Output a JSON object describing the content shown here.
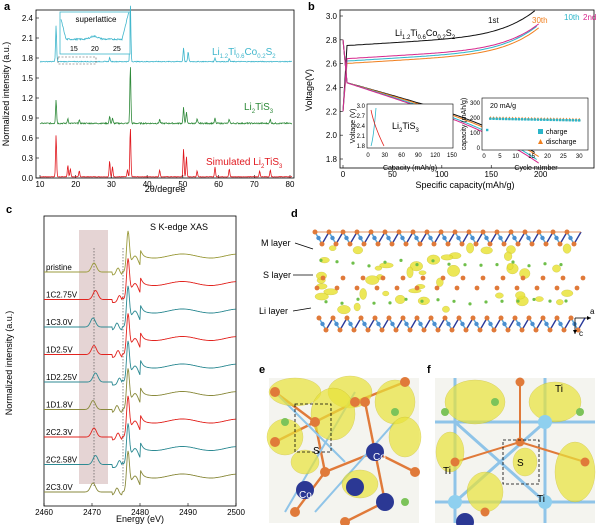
{
  "panels": {
    "a": {
      "label": "a",
      "xlabel": "2θ/degree",
      "ylabel": "Normalized intensity (a.u.)",
      "xticks": [
        "10",
        "20",
        "30",
        "40",
        "50",
        "60",
        "70",
        "80"
      ],
      "yticks": [
        "0.0",
        "0.3",
        "0.6",
        "0.9",
        "1.2",
        "1.5",
        "1.8",
        "2.1",
        "2.4"
      ],
      "inset_title": "superlattice",
      "inset_xticks": [
        "15",
        "20",
        "25"
      ],
      "series_labels": {
        "licto": {
          "base": "Li",
          "s1": "1.2",
          "mid1": "Ti",
          "s2": "0.6",
          "mid2": "Co",
          "s3": "0.2",
          "mid3": "S",
          "s4": "2"
        },
        "li2tis3": {
          "base": "Li",
          "s1": "2",
          "mid1": "TiS",
          "s2": "3"
        },
        "sim": {
          "pre": "Simulated Li",
          "s1": "2",
          "mid1": "TiS",
          "s2": "3"
        }
      },
      "colors": {
        "licto": "#3fb6cc",
        "li2tis3": "#2f8a3a",
        "sim": "#e0191f"
      }
    },
    "b": {
      "label": "b",
      "xlabel": "Specific capacity(mAh/g)",
      "ylabel": "Voltage(V)",
      "xticks": [
        "0",
        "50",
        "100",
        "150",
        "200"
      ],
      "yticks": [
        "1.8",
        "2.0",
        "2.2",
        "2.4",
        "2.6",
        "2.8",
        "3.0"
      ],
      "title": {
        "base": "Li",
        "s1": "1.2",
        "mid1": "Ti",
        "s2": "0.6",
        "mid2": "Co",
        "s3": "0.2",
        "mid3": "S",
        "s4": "2"
      },
      "cycle_labels": [
        "1st",
        "30th",
        "10th",
        "2nd"
      ],
      "cycle_colors": [
        "#111111",
        "#f07f1e",
        "#2bb5c9",
        "#d6268c"
      ],
      "inset1": {
        "ylabel": "Voltage (V)",
        "xlabel": "Capacity (mAh/g)",
        "xticks": [
          "0",
          "30",
          "60",
          "90",
          "120",
          "150"
        ],
        "yticks": [
          "1.8",
          "2.1",
          "2.4",
          "2.7",
          "3.0"
        ],
        "title": {
          "base": "Li",
          "s1": "2",
          "mid1": "TiS",
          "s2": "3"
        }
      },
      "inset2": {
        "ylabel": "capacity (mAh/g)",
        "xlabel": "Cycle number",
        "xticks": [
          "0",
          "5",
          "10",
          "15",
          "20",
          "25",
          "30"
        ],
        "yticks": [
          "0",
          "100",
          "200",
          "300"
        ],
        "rate": "20 mA/g",
        "legend": [
          "charge",
          "discharge"
        ]
      }
    },
    "c": {
      "label": "c",
      "title": "S K-edge XAS",
      "xlabel": "Energy (eV)",
      "ylabel": "Normalized intensity (a.u.)",
      "xticks": [
        "2460",
        "2470",
        "2480",
        "2490",
        "2500"
      ],
      "spectra": [
        "pristine",
        "1C2.75V",
        "1C3.0V",
        "1D2.5V",
        "1D2.25V",
        "1D1.8V",
        "2C2.3V",
        "2C2.58V",
        "2C3.0V"
      ],
      "spectra_colors": [
        "#9b9b3c",
        "#e2241f",
        "#2d8a93",
        "#e2241f",
        "#2d8a93",
        "#8a8a3c",
        "#e2241f",
        "#2d8a93",
        "#8a8a3c"
      ]
    },
    "d": {
      "label": "d",
      "layers": [
        "M layer",
        "S layer",
        "Li layer"
      ],
      "axes": {
        "a": "a",
        "c": "c"
      }
    },
    "e": {
      "label": "e",
      "atoms": [
        "S",
        "Co",
        "Co"
      ]
    },
    "f": {
      "label": "f",
      "atoms": [
        "Ti",
        "Ti",
        "S",
        "Ti"
      ]
    }
  }
}
